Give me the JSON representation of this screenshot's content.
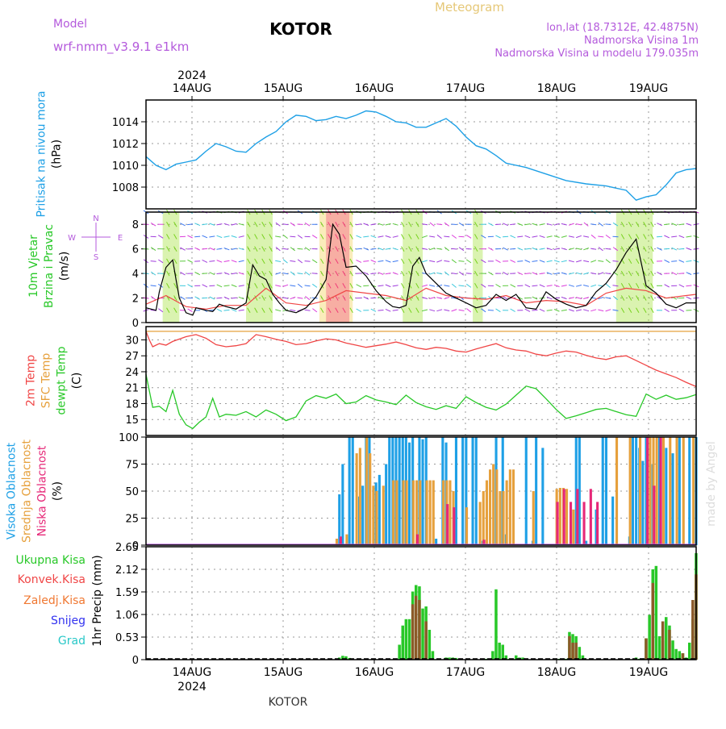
{
  "header": {
    "model_label": "Model",
    "model_name": "wrf-nmm_v3.9.1  e1km",
    "title": "KOTOR",
    "meteogram_label": "Meteogram",
    "lonlat": "lon,lat (18.7312E, 42.4875N)",
    "altitude": "Nadmorska Visina 1m",
    "model_altitude": "Nadmorska Visina u modelu 179.035m",
    "year_top": "2024",
    "year_bottom": "2024",
    "footer": "KOTOR",
    "watermark": "made by Angel"
  },
  "colors": {
    "pressure": "#1ea0e6",
    "temp2m": "#f04646",
    "sfc": "#e6a03c",
    "dewpt": "#28c828",
    "high_cloud": "#1ea0e6",
    "mid_cloud": "#e6a03c",
    "low_cloud": "#e62878",
    "precip_total": "#28c828",
    "precip_conv": "#f04646",
    "precip_frozen": "#f07832",
    "snow": "#3232f0",
    "grad": "#28c8c8"
  },
  "chart_data": [
    {
      "type": "line",
      "title": "",
      "ylabel_lines": [
        "Pritisak na nivou mora",
        "(hPa)"
      ],
      "days": [
        "14AUG",
        "15AUG",
        "16AUG",
        "17AUG",
        "18AUG",
        "19AUG"
      ],
      "ylim": [
        1006,
        1016
      ],
      "yticks": [
        1008,
        1010,
        1012,
        1014
      ],
      "grid": true,
      "series": [
        {
          "key": "pressure",
          "x": [
            0,
            3,
            6,
            9,
            12,
            15,
            18,
            21,
            24,
            27,
            30,
            33,
            36,
            39,
            42,
            45,
            48,
            51,
            54,
            57,
            60,
            63,
            66,
            69,
            72,
            75,
            78,
            81,
            84,
            87,
            90,
            93,
            96,
            99,
            102,
            105,
            108,
            114,
            120,
            126,
            132,
            138,
            144,
            147,
            150,
            153,
            156,
            159,
            162,
            165
          ],
          "values": [
            1010.8,
            1010.0,
            1009.6,
            1010.1,
            1010.3,
            1010.5,
            1011.3,
            1012.0,
            1011.7,
            1011.3,
            1011.2,
            1012.0,
            1012.6,
            1013.1,
            1014.0,
            1014.6,
            1014.5,
            1014.1,
            1014.2,
            1014.5,
            1014.3,
            1014.6,
            1015.0,
            1014.9,
            1014.5,
            1014.0,
            1013.9,
            1013.5,
            1013.5,
            1013.9,
            1014.3,
            1013.6,
            1012.6,
            1011.8,
            1011.5,
            1010.9,
            1010.2,
            1009.8,
            1009.2,
            1008.6,
            1008.3,
            1008.1,
            1007.7,
            1006.8,
            1007.1,
            1007.3,
            1008.2,
            1009.3,
            1009.6,
            1009.7
          ]
        }
      ]
    },
    {
      "type": "line",
      "title": "",
      "ylabel_lines": [
        "10m Vjetar",
        "Brzina i Pravac",
        "(m/s)"
      ],
      "compass": [
        "N",
        "W",
        "E",
        "S"
      ],
      "ylim": [
        0,
        9
      ],
      "yticks": [
        0,
        2,
        4,
        6,
        8
      ],
      "grid": true,
      "series": [
        {
          "key": "wind_speed",
          "x": [
            0,
            3,
            4,
            6,
            8,
            9,
            10,
            12,
            14,
            15,
            18,
            20,
            22,
            24,
            27,
            30,
            32,
            34,
            36,
            38,
            40,
            42,
            45,
            48,
            51,
            54,
            56,
            58,
            60,
            63,
            66,
            69,
            72,
            74,
            76,
            78,
            80,
            82,
            84,
            87,
            90,
            93,
            96,
            99,
            102,
            105,
            108,
            111,
            114,
            117,
            120,
            123,
            126,
            129,
            132,
            135,
            138,
            141,
            144,
            147,
            150,
            153,
            156,
            159,
            162,
            165
          ],
          "values": [
            1.2,
            1.0,
            2.5,
            4.5,
            5.1,
            3.5,
            2.0,
            0.8,
            0.6,
            1.2,
            1.0,
            0.9,
            1.5,
            1.3,
            1.1,
            1.6,
            4.7,
            3.8,
            3.5,
            2.3,
            1.6,
            1.0,
            0.8,
            1.2,
            2.1,
            3.5,
            8.0,
            7.2,
            4.5,
            4.6,
            3.8,
            2.6,
            1.7,
            1.3,
            1.2,
            1.4,
            4.6,
            5.3,
            4.0,
            3.2,
            2.4,
            2.0,
            1.6,
            1.2,
            1.4,
            2.3,
            1.8,
            2.3,
            1.2,
            1.1,
            2.5,
            1.9,
            1.5,
            1.2,
            1.4,
            2.5,
            3.2,
            4.3,
            5.7,
            6.8,
            3.0,
            2.4,
            1.5,
            1.2,
            1.6,
            1.6
          ]
        },
        {
          "key": "wind_gust",
          "x": [
            0,
            6,
            12,
            18,
            24,
            30,
            36,
            42,
            48,
            54,
            60,
            66,
            72,
            78,
            84,
            90,
            96,
            102,
            108,
            114,
            120,
            126,
            132,
            138,
            144,
            150,
            156,
            162,
            165
          ],
          "values": [
            1.5,
            2.2,
            1.3,
            1.1,
            1.4,
            1.4,
            2.8,
            1.6,
            1.4,
            1.8,
            2.6,
            2.4,
            2.2,
            1.8,
            2.8,
            2.2,
            2.0,
            1.9,
            2.2,
            1.6,
            1.8,
            1.7,
            1.4,
            2.4,
            2.8,
            2.6,
            2.0,
            2.2,
            2.3
          ]
        }
      ]
    },
    {
      "type": "line",
      "title": "",
      "ylabel_lines": [
        "2m Temp",
        "SFC Temp",
        "dewpt Temp",
        "(C)"
      ],
      "ylim": [
        12,
        32.5
      ],
      "yticks": [
        15,
        18,
        21,
        24,
        27,
        30
      ],
      "grid": true,
      "series": [
        {
          "key": "temp2m",
          "x": [
            0,
            1,
            2,
            4,
            6,
            8,
            12,
            15,
            18,
            21,
            24,
            27,
            30,
            33,
            36,
            39,
            42,
            45,
            48,
            51,
            54,
            57,
            60,
            63,
            66,
            69,
            72,
            75,
            78,
            81,
            84,
            87,
            90,
            93,
            96,
            99,
            102,
            105,
            108,
            111,
            114,
            117,
            120,
            123,
            126,
            129,
            132,
            135,
            138,
            141,
            144,
            147,
            150,
            153,
            156,
            159,
            162,
            165
          ],
          "values": [
            31.6,
            30.0,
            28.7,
            29.3,
            29.0,
            29.7,
            30.6,
            31.0,
            30.3,
            29.1,
            28.7,
            28.9,
            29.3,
            31.0,
            30.6,
            30.1,
            29.7,
            29.1,
            29.3,
            29.8,
            30.2,
            30.0,
            29.4,
            29.0,
            28.6,
            28.9,
            29.2,
            29.6,
            29.1,
            28.5,
            28.2,
            28.6,
            28.4,
            27.9,
            27.7,
            28.3,
            28.8,
            29.3,
            28.5,
            28.1,
            27.9,
            27.3,
            27.0,
            27.5,
            27.9,
            27.7,
            27.1,
            26.6,
            26.3,
            26.8,
            27.0,
            26.1,
            25.2,
            24.3,
            23.6,
            22.9,
            22.0,
            21.2
          ]
        },
        {
          "key": "sfc",
          "x": [
            0,
            165
          ],
          "values": [
            31.6,
            31.6
          ]
        },
        {
          "key": "dewpt",
          "x": [
            0,
            2,
            4,
            6,
            8,
            10,
            12,
            14,
            16,
            18,
            20,
            22,
            24,
            27,
            30,
            33,
            36,
            39,
            42,
            45,
            48,
            51,
            54,
            57,
            60,
            63,
            66,
            69,
            72,
            75,
            78,
            81,
            84,
            87,
            90,
            93,
            96,
            99,
            102,
            105,
            108,
            111,
            114,
            117,
            120,
            123,
            126,
            129,
            132,
            135,
            138,
            141,
            144,
            147,
            150,
            153,
            156,
            159,
            162,
            165
          ],
          "values": [
            23.5,
            17.3,
            17.5,
            16.5,
            20.5,
            16.0,
            14.0,
            13.3,
            14.5,
            15.5,
            19.0,
            15.5,
            16.0,
            15.8,
            16.5,
            15.5,
            16.8,
            16.0,
            14.8,
            15.5,
            18.5,
            19.5,
            19.0,
            19.8,
            18.0,
            18.3,
            19.5,
            18.7,
            18.3,
            17.8,
            19.6,
            18.2,
            17.4,
            16.9,
            17.6,
            17.1,
            19.3,
            18.2,
            17.3,
            16.8,
            17.9,
            19.6,
            21.3,
            20.8,
            18.9,
            16.9,
            15.2,
            15.7,
            16.3,
            16.9,
            17.1,
            16.5,
            15.9,
            15.6,
            19.8,
            18.8,
            19.6,
            18.8,
            19.1,
            19.7
          ]
        }
      ]
    },
    {
      "type": "bar",
      "title": "",
      "ylabel_lines": [
        "Visoka Oblacnost",
        "Srednja Oblacnost",
        "Niska  Oblacnost",
        "(%)"
      ],
      "ylim": [
        0,
        100
      ],
      "yticks": [
        0,
        25,
        50,
        75,
        100
      ],
      "grid": true,
      "series": [
        {
          "key": "high_cloud",
          "x": [
            58,
            59,
            61,
            62,
            64,
            65,
            66,
            67,
            69,
            70,
            72,
            73,
            74,
            75,
            76,
            77,
            78,
            79,
            80,
            82,
            83,
            84,
            87,
            89,
            90,
            93,
            95,
            96,
            98,
            99,
            101,
            105,
            107,
            108,
            114,
            116,
            117,
            119,
            121,
            123,
            127,
            129,
            130,
            132,
            135,
            137,
            138,
            140,
            144,
            145,
            146,
            147,
            148,
            149,
            150,
            152,
            154,
            156,
            158,
            160,
            163,
            165
          ],
          "values": [
            47,
            75,
            100,
            100,
            45,
            55,
            100,
            100,
            58,
            65,
            75,
            100,
            100,
            100,
            100,
            100,
            100,
            95,
            100,
            100,
            98,
            100,
            6,
            100,
            95,
            100,
            100,
            100,
            100,
            100,
            4,
            100,
            100,
            10,
            100,
            4,
            100,
            90,
            0,
            0,
            0,
            100,
            100,
            4,
            33,
            100,
            100,
            45,
            0,
            8,
            100,
            100,
            90,
            78,
            100,
            75,
            100,
            90,
            85,
            100,
            100,
            100
          ]
        },
        {
          "key": "mid_cloud",
          "x": [
            57,
            60,
            63,
            64,
            66,
            67,
            68,
            69,
            71,
            74,
            75,
            77,
            78,
            80,
            81,
            82,
            84,
            85,
            86,
            89,
            90,
            91,
            92,
            96,
            100,
            101,
            102,
            103,
            104,
            105,
            106,
            107,
            108,
            109,
            110,
            116,
            123,
            124,
            125,
            126,
            128,
            141,
            145,
            148,
            151,
            152,
            153,
            155,
            157,
            159,
            161,
            164
          ],
          "values": [
            6,
            10,
            85,
            90,
            100,
            85,
            55,
            50,
            55,
            60,
            60,
            60,
            60,
            60,
            60,
            60,
            60,
            60,
            60,
            60,
            60,
            60,
            50,
            35,
            40,
            50,
            60,
            70,
            75,
            70,
            50,
            50,
            60,
            70,
            70,
            50,
            52,
            53,
            53,
            52,
            33,
            100,
            100,
            100,
            100,
            100,
            100,
            100,
            100,
            100,
            100,
            100
          ]
        },
        {
          "key": "low_cloud",
          "x": [
            58,
            81,
            90,
            92,
            101,
            123,
            125,
            127,
            129,
            131,
            133,
            135,
            150,
            152,
            154
          ],
          "values": [
            8,
            10,
            38,
            35,
            5,
            40,
            52,
            40,
            52,
            40,
            52,
            40,
            100,
            55,
            100
          ]
        }
      ]
    },
    {
      "type": "bar",
      "title": "",
      "ylabel_lines": [
        "1hr Precip (mm)"
      ],
      "legend": [
        "Ukupna  Kisa",
        "Konvek.Kisa",
        "Zaledj.Kisa",
        "Snijeg",
        "Grad"
      ],
      "ylim": [
        0,
        2.65
      ],
      "yticks": [
        0,
        0.53,
        1.06,
        1.59,
        2.12,
        2.65
      ],
      "grid": true,
      "series": [
        {
          "key": "precip_total",
          "x": [
            58,
            59,
            60,
            61,
            76,
            77,
            78,
            79,
            80,
            81,
            82,
            83,
            84,
            85,
            86,
            90,
            91,
            92,
            93,
            102,
            103,
            104,
            105,
            106,
            107,
            108,
            109,
            111,
            112,
            113,
            123,
            124,
            125,
            126,
            127,
            128,
            129,
            130,
            131,
            147,
            148,
            149,
            150,
            151,
            152,
            153,
            154,
            155,
            156,
            157,
            158,
            159,
            160,
            161,
            162,
            163,
            164,
            165
          ],
          "values": [
            0.05,
            0.09,
            0.08,
            0.04,
            0.35,
            0.8,
            0.95,
            0.95,
            1.6,
            1.75,
            1.72,
            1.2,
            1.25,
            0.7,
            0.2,
            0.05,
            0.05,
            0.05,
            0.04,
            0.02,
            0.02,
            0.2,
            1.65,
            0.4,
            0.35,
            0.1,
            0.02,
            0.1,
            0.05,
            0.05,
            0.02,
            0.02,
            0.02,
            0.02,
            0.65,
            0.6,
            0.55,
            0.3,
            0.1,
            0.05,
            0.02,
            0.03,
            0.5,
            1.05,
            2.12,
            2.2,
            0.55,
            0.45,
            1.0,
            0.8,
            0.45,
            0.25,
            0.2,
            0.15,
            0.05,
            0.4,
            0.95,
            2.5
          ]
        },
        {
          "key": "precip_conv",
          "x": [
            80,
            81,
            82,
            84,
            127,
            128,
            129,
            150,
            152,
            155,
            157,
            161,
            164,
            165
          ],
          "values": [
            1.3,
            1.5,
            1.4,
            0.9,
            0.55,
            0.4,
            0.4,
            0.5,
            1.8,
            0.9,
            0.7,
            0.15,
            1.4,
            2.0
          ]
        }
      ]
    }
  ]
}
